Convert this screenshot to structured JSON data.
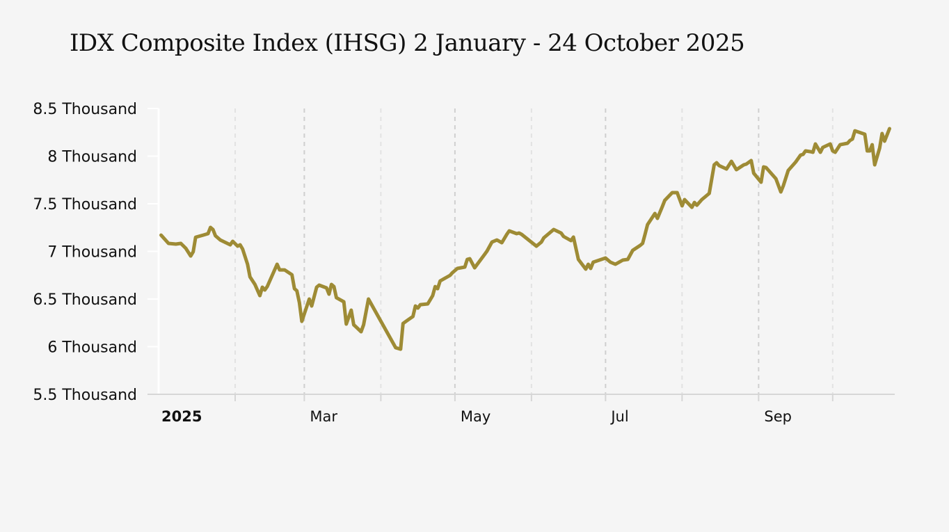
{
  "chart_data": {
    "type": "line",
    "title": "IDX Composite Index (IHSG) 2 January - 24 October 2025",
    "xlabel": "",
    "ylabel": "",
    "x_unit": "days since 1 January 2025",
    "y_unit": "index points",
    "ylim": [
      5500,
      8500
    ],
    "yticks": [
      {
        "value": 8500,
        "label": "8.5 Thousand"
      },
      {
        "value": 8000,
        "label": "8 Thousand"
      },
      {
        "value": 7500,
        "label": "7.5 Thousand"
      },
      {
        "value": 7000,
        "label": "7 Thousand"
      },
      {
        "value": 6500,
        "label": "6.5 Thousand"
      },
      {
        "value": 6000,
        "label": "6 Thousand"
      },
      {
        "value": 5500,
        "label": "5.5 Thousand"
      }
    ],
    "xlim": [
      0,
      297
    ],
    "xticks": [
      {
        "value": 0,
        "label": "2025",
        "bold": true,
        "major": true
      },
      {
        "value": 31,
        "label": "",
        "major": false
      },
      {
        "value": 59,
        "label": "Mar",
        "major": true
      },
      {
        "value": 90,
        "label": "",
        "major": false
      },
      {
        "value": 120,
        "label": "May",
        "major": true
      },
      {
        "value": 151,
        "label": "",
        "major": false
      },
      {
        "value": 181,
        "label": "Jul",
        "major": true
      },
      {
        "value": 212,
        "label": "",
        "major": false
      },
      {
        "value": 243,
        "label": "Sep",
        "major": true
      },
      {
        "value": 273,
        "label": "",
        "major": false
      }
    ],
    "grid": "vertical dashed",
    "legend": "none",
    "series": [
      {
        "name": "IHSG",
        "color": "#9e8b35",
        "points": [
          [
            1,
            7171
          ],
          [
            4,
            7084
          ],
          [
            7,
            7077
          ],
          [
            9,
            7084
          ],
          [
            11,
            7033
          ],
          [
            13,
            6952
          ],
          [
            14,
            6996
          ],
          [
            15,
            7149
          ],
          [
            18,
            7171
          ],
          [
            20,
            7186
          ],
          [
            21,
            7252
          ],
          [
            22,
            7230
          ],
          [
            23,
            7164
          ],
          [
            25,
            7120
          ],
          [
            29,
            7069
          ],
          [
            30,
            7106
          ],
          [
            32,
            7055
          ],
          [
            33,
            7069
          ],
          [
            34,
            7025
          ],
          [
            36,
            6865
          ],
          [
            37,
            6733
          ],
          [
            39,
            6653
          ],
          [
            41,
            6536
          ],
          [
            42,
            6624
          ],
          [
            43,
            6595
          ],
          [
            44,
            6631
          ],
          [
            48,
            6865
          ],
          [
            49,
            6806
          ],
          [
            51,
            6806
          ],
          [
            54,
            6755
          ],
          [
            55,
            6609
          ],
          [
            56,
            6587
          ],
          [
            57,
            6463
          ],
          [
            58,
            6266
          ],
          [
            61,
            6500
          ],
          [
            62,
            6427
          ],
          [
            64,
            6624
          ],
          [
            65,
            6646
          ],
          [
            68,
            6617
          ],
          [
            69,
            6551
          ],
          [
            70,
            6653
          ],
          [
            71,
            6631
          ],
          [
            72,
            6514
          ],
          [
            75,
            6471
          ],
          [
            76,
            6237
          ],
          [
            78,
            6383
          ],
          [
            79,
            6230
          ],
          [
            82,
            6157
          ],
          [
            83,
            6230
          ],
          [
            85,
            6500
          ],
          [
            96,
            5989
          ],
          [
            98,
            5974
          ],
          [
            99,
            6244
          ],
          [
            101,
            6281
          ],
          [
            103,
            6317
          ],
          [
            104,
            6427
          ],
          [
            105,
            6405
          ],
          [
            106,
            6441
          ],
          [
            109,
            6449
          ],
          [
            111,
            6536
          ],
          [
            112,
            6631
          ],
          [
            113,
            6609
          ],
          [
            114,
            6690
          ],
          [
            118,
            6748
          ],
          [
            119,
            6777
          ],
          [
            121,
            6821
          ],
          [
            124,
            6836
          ],
          [
            125,
            6916
          ],
          [
            126,
            6923
          ],
          [
            128,
            6828
          ],
          [
            132,
            6967
          ],
          [
            133,
            7004
          ],
          [
            135,
            7098
          ],
          [
            137,
            7120
          ],
          [
            139,
            7091
          ],
          [
            141,
            7179
          ],
          [
            142,
            7215
          ],
          [
            145,
            7186
          ],
          [
            146,
            7193
          ],
          [
            147,
            7179
          ],
          [
            153,
            7055
          ],
          [
            155,
            7098
          ],
          [
            156,
            7142
          ],
          [
            160,
            7230
          ],
          [
            163,
            7193
          ],
          [
            164,
            7157
          ],
          [
            167,
            7113
          ],
          [
            168,
            7150
          ],
          [
            170,
            6916
          ],
          [
            173,
            6814
          ],
          [
            174,
            6865
          ],
          [
            175,
            6821
          ],
          [
            176,
            6887
          ],
          [
            181,
            6931
          ],
          [
            183,
            6887
          ],
          [
            185,
            6865
          ],
          [
            188,
            6909
          ],
          [
            190,
            6916
          ],
          [
            192,
            7011
          ],
          [
            195,
            7062
          ],
          [
            196,
            7084
          ],
          [
            197,
            7179
          ],
          [
            198,
            7281
          ],
          [
            201,
            7398
          ],
          [
            202,
            7347
          ],
          [
            204,
            7471
          ],
          [
            205,
            7536
          ],
          [
            208,
            7617
          ],
          [
            210,
            7617
          ],
          [
            212,
            7478
          ],
          [
            213,
            7544
          ],
          [
            216,
            7463
          ],
          [
            217,
            7514
          ],
          [
            218,
            7485
          ],
          [
            220,
            7544
          ],
          [
            223,
            7609
          ],
          [
            225,
            7909
          ],
          [
            226,
            7931
          ],
          [
            227,
            7901
          ],
          [
            230,
            7865
          ],
          [
            232,
            7945
          ],
          [
            234,
            7858
          ],
          [
            237,
            7909
          ],
          [
            238,
            7916
          ],
          [
            240,
            7953
          ],
          [
            241,
            7821
          ],
          [
            244,
            7726
          ],
          [
            245,
            7887
          ],
          [
            246,
            7880
          ],
          [
            250,
            7763
          ],
          [
            252,
            7624
          ],
          [
            253,
            7690
          ],
          [
            255,
            7850
          ],
          [
            258,
            7938
          ],
          [
            260,
            8011
          ],
          [
            261,
            8018
          ],
          [
            262,
            8055
          ],
          [
            264,
            8047
          ],
          [
            265,
            8040
          ],
          [
            266,
            8128
          ],
          [
            268,
            8040
          ],
          [
            269,
            8091
          ],
          [
            272,
            8128
          ],
          [
            273,
            8055
          ],
          [
            274,
            8040
          ],
          [
            276,
            8120
          ],
          [
            279,
            8135
          ],
          [
            280,
            8164
          ],
          [
            281,
            8179
          ],
          [
            282,
            8266
          ],
          [
            286,
            8230
          ],
          [
            287,
            8055
          ],
          [
            288,
            8055
          ],
          [
            289,
            8120
          ],
          [
            290,
            7909
          ],
          [
            292,
            8084
          ],
          [
            293,
            8237
          ],
          [
            294,
            8157
          ],
          [
            296,
            8288
          ]
        ]
      }
    ]
  }
}
